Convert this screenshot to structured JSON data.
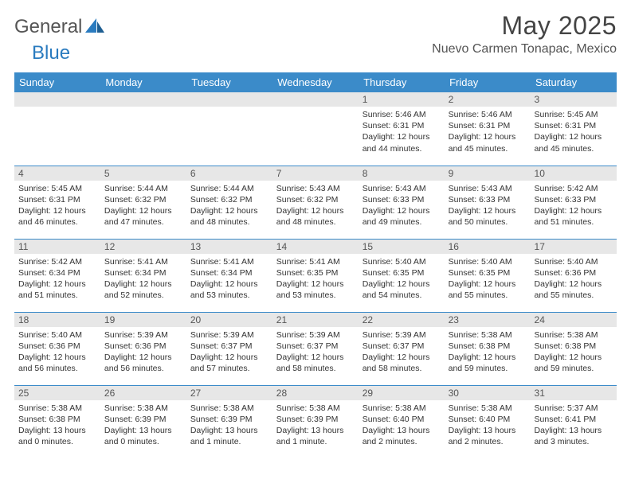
{
  "brand": {
    "part1": "General",
    "part2": "Blue"
  },
  "title": "May 2025",
  "location": "Nuevo Carmen Tonapac, Mexico",
  "day_headers": [
    "Sunday",
    "Monday",
    "Tuesday",
    "Wednesday",
    "Thursday",
    "Friday",
    "Saturday"
  ],
  "colors": {
    "header_bg": "#3b8bc9",
    "header_text": "#ffffff",
    "daynum_bg": "#e7e7e7",
    "row_border": "#3b8bc9",
    "brand_blue": "#2a7bbf",
    "text": "#333333"
  },
  "weeks": [
    [
      {
        "n": "",
        "sunrise": "",
        "sunset": "",
        "daylight": ""
      },
      {
        "n": "",
        "sunrise": "",
        "sunset": "",
        "daylight": ""
      },
      {
        "n": "",
        "sunrise": "",
        "sunset": "",
        "daylight": ""
      },
      {
        "n": "",
        "sunrise": "",
        "sunset": "",
        "daylight": ""
      },
      {
        "n": "1",
        "sunrise": "Sunrise: 5:46 AM",
        "sunset": "Sunset: 6:31 PM",
        "daylight": "Daylight: 12 hours and 44 minutes."
      },
      {
        "n": "2",
        "sunrise": "Sunrise: 5:46 AM",
        "sunset": "Sunset: 6:31 PM",
        "daylight": "Daylight: 12 hours and 45 minutes."
      },
      {
        "n": "3",
        "sunrise": "Sunrise: 5:45 AM",
        "sunset": "Sunset: 6:31 PM",
        "daylight": "Daylight: 12 hours and 45 minutes."
      }
    ],
    [
      {
        "n": "4",
        "sunrise": "Sunrise: 5:45 AM",
        "sunset": "Sunset: 6:31 PM",
        "daylight": "Daylight: 12 hours and 46 minutes."
      },
      {
        "n": "5",
        "sunrise": "Sunrise: 5:44 AM",
        "sunset": "Sunset: 6:32 PM",
        "daylight": "Daylight: 12 hours and 47 minutes."
      },
      {
        "n": "6",
        "sunrise": "Sunrise: 5:44 AM",
        "sunset": "Sunset: 6:32 PM",
        "daylight": "Daylight: 12 hours and 48 minutes."
      },
      {
        "n": "7",
        "sunrise": "Sunrise: 5:43 AM",
        "sunset": "Sunset: 6:32 PM",
        "daylight": "Daylight: 12 hours and 48 minutes."
      },
      {
        "n": "8",
        "sunrise": "Sunrise: 5:43 AM",
        "sunset": "Sunset: 6:33 PM",
        "daylight": "Daylight: 12 hours and 49 minutes."
      },
      {
        "n": "9",
        "sunrise": "Sunrise: 5:43 AM",
        "sunset": "Sunset: 6:33 PM",
        "daylight": "Daylight: 12 hours and 50 minutes."
      },
      {
        "n": "10",
        "sunrise": "Sunrise: 5:42 AM",
        "sunset": "Sunset: 6:33 PM",
        "daylight": "Daylight: 12 hours and 51 minutes."
      }
    ],
    [
      {
        "n": "11",
        "sunrise": "Sunrise: 5:42 AM",
        "sunset": "Sunset: 6:34 PM",
        "daylight": "Daylight: 12 hours and 51 minutes."
      },
      {
        "n": "12",
        "sunrise": "Sunrise: 5:41 AM",
        "sunset": "Sunset: 6:34 PM",
        "daylight": "Daylight: 12 hours and 52 minutes."
      },
      {
        "n": "13",
        "sunrise": "Sunrise: 5:41 AM",
        "sunset": "Sunset: 6:34 PM",
        "daylight": "Daylight: 12 hours and 53 minutes."
      },
      {
        "n": "14",
        "sunrise": "Sunrise: 5:41 AM",
        "sunset": "Sunset: 6:35 PM",
        "daylight": "Daylight: 12 hours and 53 minutes."
      },
      {
        "n": "15",
        "sunrise": "Sunrise: 5:40 AM",
        "sunset": "Sunset: 6:35 PM",
        "daylight": "Daylight: 12 hours and 54 minutes."
      },
      {
        "n": "16",
        "sunrise": "Sunrise: 5:40 AM",
        "sunset": "Sunset: 6:35 PM",
        "daylight": "Daylight: 12 hours and 55 minutes."
      },
      {
        "n": "17",
        "sunrise": "Sunrise: 5:40 AM",
        "sunset": "Sunset: 6:36 PM",
        "daylight": "Daylight: 12 hours and 55 minutes."
      }
    ],
    [
      {
        "n": "18",
        "sunrise": "Sunrise: 5:40 AM",
        "sunset": "Sunset: 6:36 PM",
        "daylight": "Daylight: 12 hours and 56 minutes."
      },
      {
        "n": "19",
        "sunrise": "Sunrise: 5:39 AM",
        "sunset": "Sunset: 6:36 PM",
        "daylight": "Daylight: 12 hours and 56 minutes."
      },
      {
        "n": "20",
        "sunrise": "Sunrise: 5:39 AM",
        "sunset": "Sunset: 6:37 PM",
        "daylight": "Daylight: 12 hours and 57 minutes."
      },
      {
        "n": "21",
        "sunrise": "Sunrise: 5:39 AM",
        "sunset": "Sunset: 6:37 PM",
        "daylight": "Daylight: 12 hours and 58 minutes."
      },
      {
        "n": "22",
        "sunrise": "Sunrise: 5:39 AM",
        "sunset": "Sunset: 6:37 PM",
        "daylight": "Daylight: 12 hours and 58 minutes."
      },
      {
        "n": "23",
        "sunrise": "Sunrise: 5:38 AM",
        "sunset": "Sunset: 6:38 PM",
        "daylight": "Daylight: 12 hours and 59 minutes."
      },
      {
        "n": "24",
        "sunrise": "Sunrise: 5:38 AM",
        "sunset": "Sunset: 6:38 PM",
        "daylight": "Daylight: 12 hours and 59 minutes."
      }
    ],
    [
      {
        "n": "25",
        "sunrise": "Sunrise: 5:38 AM",
        "sunset": "Sunset: 6:38 PM",
        "daylight": "Daylight: 13 hours and 0 minutes."
      },
      {
        "n": "26",
        "sunrise": "Sunrise: 5:38 AM",
        "sunset": "Sunset: 6:39 PM",
        "daylight": "Daylight: 13 hours and 0 minutes."
      },
      {
        "n": "27",
        "sunrise": "Sunrise: 5:38 AM",
        "sunset": "Sunset: 6:39 PM",
        "daylight": "Daylight: 13 hours and 1 minute."
      },
      {
        "n": "28",
        "sunrise": "Sunrise: 5:38 AM",
        "sunset": "Sunset: 6:39 PM",
        "daylight": "Daylight: 13 hours and 1 minute."
      },
      {
        "n": "29",
        "sunrise": "Sunrise: 5:38 AM",
        "sunset": "Sunset: 6:40 PM",
        "daylight": "Daylight: 13 hours and 2 minutes."
      },
      {
        "n": "30",
        "sunrise": "Sunrise: 5:38 AM",
        "sunset": "Sunset: 6:40 PM",
        "daylight": "Daylight: 13 hours and 2 minutes."
      },
      {
        "n": "31",
        "sunrise": "Sunrise: 5:37 AM",
        "sunset": "Sunset: 6:41 PM",
        "daylight": "Daylight: 13 hours and 3 minutes."
      }
    ]
  ]
}
